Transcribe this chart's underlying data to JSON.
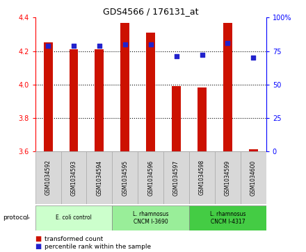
{
  "title": "GDS4566 / 176131_at",
  "samples": [
    "GSM1034592",
    "GSM1034593",
    "GSM1034594",
    "GSM1034595",
    "GSM1034596",
    "GSM1034597",
    "GSM1034598",
    "GSM1034599",
    "GSM1034600"
  ],
  "transformed_count": [
    4.25,
    4.21,
    4.21,
    4.37,
    4.31,
    3.99,
    3.98,
    4.37,
    3.61
  ],
  "percentile_rank": [
    79,
    79,
    79,
    80,
    80,
    71,
    72,
    81,
    70
  ],
  "ylim": [
    3.6,
    4.4
  ],
  "y2lim": [
    0,
    100
  ],
  "yticks": [
    3.6,
    3.8,
    4.0,
    4.2,
    4.4
  ],
  "y2ticks": [
    0,
    25,
    50,
    75,
    100
  ],
  "bar_color": "#cc1100",
  "dot_color": "#2222cc",
  "protocols": [
    {
      "label": "E. coli control",
      "start": 0,
      "end": 3,
      "color": "#ccffcc"
    },
    {
      "label": "L. rhamnosus\nCNCM I-3690",
      "start": 3,
      "end": 6,
      "color": "#99ee99"
    },
    {
      "label": "L. rhamnosus\nCNCM I-4317",
      "start": 6,
      "end": 9,
      "color": "#44cc44"
    }
  ],
  "legend_items": [
    {
      "label": "transformed count",
      "color": "#cc1100"
    },
    {
      "label": "percentile rank within the sample",
      "color": "#2222cc"
    }
  ],
  "sample_box_color": "#d8d8d8",
  "sample_box_edge": "#aaaaaa"
}
